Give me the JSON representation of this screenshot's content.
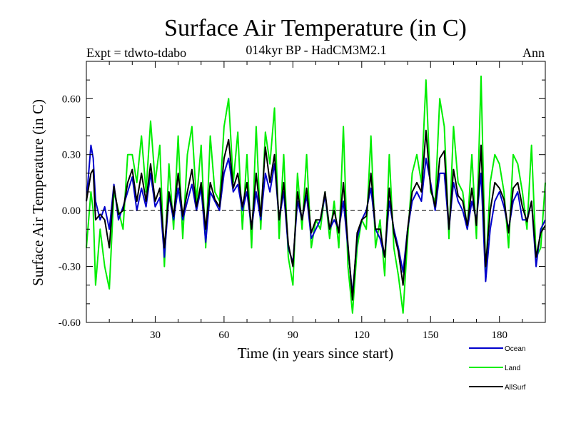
{
  "chart_data": {
    "type": "line",
    "title": "Surface Air Temperature (in C)",
    "subtitle": "014kyr BP - HadCM3M2.1",
    "expt_label": "Expt = tdwto-tdabo",
    "season_label": "Ann",
    "xlabel": "Time (in years since start)",
    "ylabel": "Surface Air Temperature (in C)",
    "xlim": [
      0,
      200
    ],
    "ylim": [
      -0.6,
      0.8
    ],
    "x_ticks": [
      {
        "value": 30,
        "label": "30"
      },
      {
        "value": 60,
        "label": "60"
      },
      {
        "value": 90,
        "label": "90"
      },
      {
        "value": 120,
        "label": "120"
      },
      {
        "value": 150,
        "label": "150"
      },
      {
        "value": 180,
        "label": "180"
      }
    ],
    "y_ticks": [
      {
        "value": -0.6,
        "label": "-0.60"
      },
      {
        "value": -0.3,
        "label": "-0.30"
      },
      {
        "value": 0.0,
        "label": "0.00"
      },
      {
        "value": 0.3,
        "label": "0.30"
      },
      {
        "value": 0.6,
        "label": "0.60"
      }
    ],
    "zero_line": true,
    "legend": [
      "Ocean",
      "Land",
      "AllSurf"
    ],
    "series": [
      {
        "name": "Ocean",
        "color": "#0000cc",
        "x": [
          0,
          2,
          3,
          4,
          6,
          8,
          10,
          12,
          14,
          16,
          18,
          20,
          22,
          24,
          26,
          28,
          30,
          32,
          34,
          36,
          38,
          40,
          42,
          44,
          46,
          48,
          50,
          52,
          54,
          56,
          58,
          60,
          62,
          64,
          66,
          68,
          70,
          72,
          74,
          76,
          78,
          80,
          82,
          84,
          86,
          88,
          90,
          92,
          94,
          96,
          98,
          100,
          102,
          104,
          106,
          108,
          110,
          112,
          114,
          116,
          118,
          120,
          122,
          124,
          126,
          128,
          130,
          132,
          134,
          136,
          138,
          140,
          142,
          144,
          146,
          148,
          150,
          152,
          154,
          156,
          158,
          160,
          162,
          164,
          166,
          168,
          170,
          172,
          174,
          176,
          178,
          180,
          182,
          184,
          186,
          188,
          190,
          192,
          194,
          196,
          198,
          200
        ],
        "values": [
          0.05,
          0.35,
          0.28,
          0.05,
          -0.05,
          0.02,
          -0.1,
          0.14,
          -0.05,
          0.02,
          0.1,
          0.18,
          0.0,
          0.12,
          0.02,
          0.2,
          0.02,
          0.07,
          -0.25,
          0.08,
          -0.05,
          0.12,
          -0.05,
          0.05,
          0.14,
          0.0,
          0.12,
          -0.17,
          0.1,
          0.05,
          0.0,
          0.2,
          0.28,
          0.1,
          0.14,
          0.0,
          0.1,
          -0.1,
          0.1,
          -0.05,
          0.2,
          0.1,
          0.25,
          -0.05,
          0.1,
          -0.2,
          -0.28,
          0.05,
          -0.05,
          0.08,
          -0.15,
          -0.1,
          -0.05,
          0.08,
          -0.1,
          -0.05,
          -0.1,
          0.05,
          -0.2,
          -0.45,
          -0.15,
          -0.05,
          0.0,
          0.12,
          -0.1,
          -0.15,
          -0.25,
          0.05,
          -0.1,
          -0.2,
          -0.33,
          -0.1,
          0.05,
          0.1,
          0.05,
          0.28,
          0.15,
          0.0,
          0.2,
          0.2,
          -0.1,
          0.15,
          0.05,
          0.0,
          -0.1,
          0.05,
          -0.05,
          0.2,
          -0.38,
          -0.1,
          0.05,
          0.1,
          0.02,
          -0.1,
          0.05,
          0.1,
          -0.05,
          -0.05,
          0.05,
          -0.3,
          -0.1,
          -0.05
        ]
      },
      {
        "name": "Land",
        "color": "#00ee00",
        "x": [
          0,
          2,
          3,
          4,
          6,
          8,
          10,
          12,
          14,
          16,
          18,
          20,
          22,
          24,
          26,
          28,
          30,
          32,
          34,
          36,
          38,
          40,
          42,
          44,
          46,
          48,
          50,
          52,
          54,
          56,
          58,
          60,
          62,
          64,
          66,
          68,
          70,
          72,
          74,
          76,
          78,
          80,
          82,
          84,
          86,
          88,
          90,
          92,
          94,
          96,
          98,
          100,
          102,
          104,
          106,
          108,
          110,
          112,
          114,
          116,
          118,
          120,
          122,
          124,
          126,
          128,
          130,
          132,
          134,
          136,
          138,
          140,
          142,
          144,
          146,
          148,
          150,
          152,
          154,
          156,
          158,
          160,
          162,
          164,
          166,
          168,
          170,
          172,
          174,
          176,
          178,
          180,
          182,
          184,
          186,
          188,
          190,
          192,
          194,
          196,
          198,
          200
        ],
        "values": [
          -0.2,
          0.1,
          0.0,
          -0.4,
          -0.1,
          -0.3,
          -0.42,
          0.1,
          0.0,
          -0.1,
          0.3,
          0.3,
          0.15,
          0.4,
          0.1,
          0.48,
          0.15,
          0.35,
          -0.3,
          0.25,
          -0.1,
          0.4,
          -0.15,
          0.3,
          0.45,
          0.05,
          0.35,
          -0.2,
          0.4,
          0.1,
          0.05,
          0.45,
          0.6,
          0.15,
          0.42,
          -0.1,
          0.3,
          -0.2,
          0.45,
          -0.1,
          0.42,
          0.25,
          0.55,
          -0.15,
          0.3,
          -0.25,
          -0.4,
          0.2,
          -0.1,
          0.3,
          -0.2,
          -0.05,
          -0.1,
          0.1,
          -0.15,
          0.05,
          -0.2,
          0.45,
          -0.3,
          -0.55,
          -0.2,
          -0.05,
          -0.1,
          0.4,
          -0.2,
          -0.05,
          -0.35,
          0.3,
          -0.2,
          -0.35,
          -0.55,
          -0.15,
          0.2,
          0.3,
          0.15,
          0.7,
          0.1,
          0.05,
          0.6,
          0.45,
          -0.15,
          0.45,
          0.15,
          0.1,
          -0.1,
          0.3,
          -0.15,
          0.72,
          -0.35,
          0.15,
          0.3,
          0.25,
          0.1,
          -0.2,
          0.3,
          0.25,
          0.1,
          -0.1,
          0.35,
          -0.25,
          -0.2,
          0.15
        ]
      },
      {
        "name": "AllSurf",
        "color": "#000000",
        "x": [
          0,
          2,
          3,
          4,
          6,
          8,
          10,
          12,
          14,
          16,
          18,
          20,
          22,
          24,
          26,
          28,
          30,
          32,
          34,
          36,
          38,
          40,
          42,
          44,
          46,
          48,
          50,
          52,
          54,
          56,
          58,
          60,
          62,
          64,
          66,
          68,
          70,
          72,
          74,
          76,
          78,
          80,
          82,
          84,
          86,
          88,
          90,
          92,
          94,
          96,
          98,
          100,
          102,
          104,
          106,
          108,
          110,
          112,
          114,
          116,
          118,
          120,
          122,
          124,
          126,
          128,
          130,
          132,
          134,
          136,
          138,
          140,
          142,
          144,
          146,
          148,
          150,
          152,
          154,
          156,
          158,
          160,
          162,
          164,
          166,
          168,
          170,
          172,
          174,
          176,
          178,
          180,
          182,
          184,
          186,
          188,
          190,
          192,
          194,
          196,
          198,
          200
        ],
        "values": [
          0.05,
          0.2,
          0.22,
          -0.05,
          -0.02,
          -0.05,
          -0.2,
          0.13,
          -0.02,
          0.0,
          0.15,
          0.22,
          0.05,
          0.2,
          0.05,
          0.25,
          0.05,
          0.12,
          -0.2,
          0.1,
          -0.03,
          0.2,
          -0.03,
          0.1,
          0.22,
          0.02,
          0.15,
          -0.1,
          0.15,
          0.06,
          0.02,
          0.28,
          0.38,
          0.12,
          0.2,
          0.02,
          0.15,
          -0.1,
          0.2,
          -0.03,
          0.34,
          0.15,
          0.3,
          -0.05,
          0.15,
          -0.18,
          -0.3,
          0.1,
          -0.05,
          0.12,
          -0.12,
          -0.05,
          -0.05,
          0.1,
          -0.1,
          0.0,
          -0.12,
          0.15,
          -0.18,
          -0.48,
          -0.12,
          -0.05,
          -0.03,
          0.2,
          -0.1,
          -0.1,
          -0.25,
          0.12,
          -0.12,
          -0.22,
          -0.4,
          -0.1,
          0.1,
          0.15,
          0.1,
          0.43,
          0.12,
          0.02,
          0.28,
          0.32,
          -0.1,
          0.22,
          0.08,
          0.05,
          -0.08,
          0.12,
          -0.08,
          0.35,
          -0.3,
          0.0,
          0.15,
          0.12,
          0.06,
          -0.12,
          0.12,
          0.15,
          0.02,
          -0.06,
          0.05,
          -0.25,
          -0.12,
          -0.08
        ]
      }
    ]
  }
}
